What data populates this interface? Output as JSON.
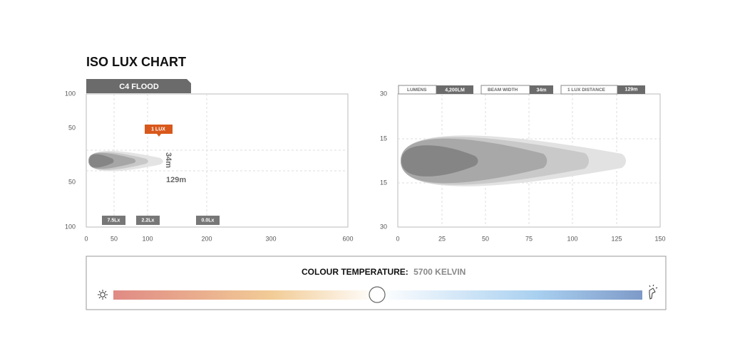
{
  "title": "ISO LUX CHART",
  "left_chart": {
    "tab": "C4 FLOOD",
    "y_labels": [
      "100",
      "50",
      "50",
      "100"
    ],
    "x_labels": [
      "0",
      "50",
      "100",
      "200",
      "300",
      "600"
    ],
    "lux_label": "1 LUX",
    "width_label": "34m",
    "distance_label": "129m",
    "badges": [
      "7.5Lx",
      "2.2Lx",
      "0.0Lx"
    ]
  },
  "right_chart": {
    "stats": [
      {
        "label": "LUMENS",
        "value": "4,200LM"
      },
      {
        "label": "BEAM WIDTH",
        "value": "34m"
      },
      {
        "label": "1 LUX DISTANCE",
        "value": "129m"
      }
    ],
    "y_labels": [
      "30",
      "15",
      "15",
      "30"
    ],
    "x_labels": [
      "0",
      "25",
      "50",
      "75",
      "100",
      "125",
      "150"
    ]
  },
  "colour_temperature": {
    "label": "COLOUR TEMPERATURE:",
    "value": "5700 KELVIN"
  }
}
